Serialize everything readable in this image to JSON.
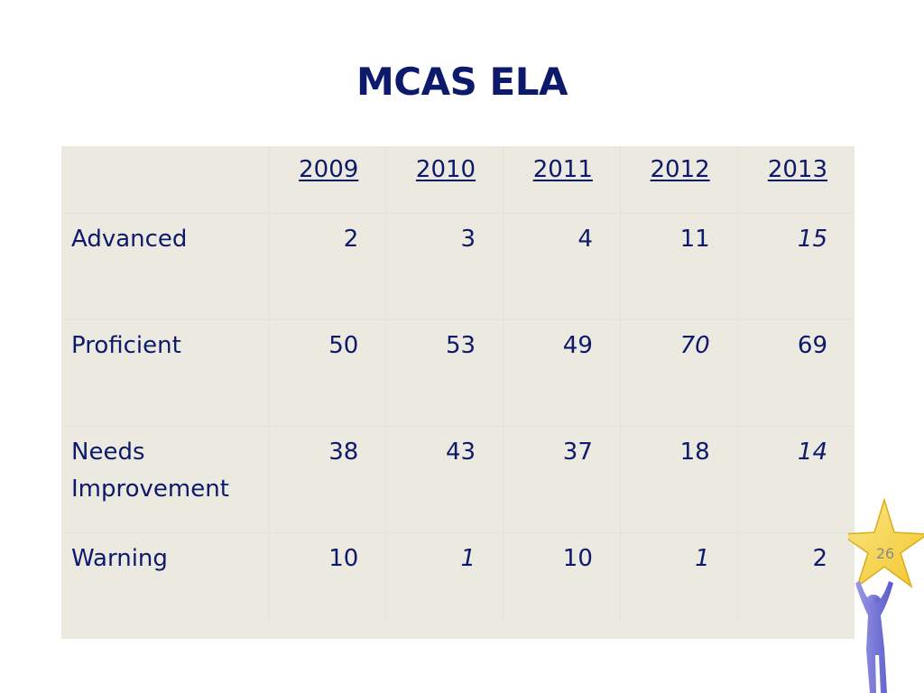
{
  "title": "MCAS ELA",
  "table": {
    "years": [
      "2009",
      "2010",
      "2011",
      "2012",
      "2013"
    ],
    "rows": [
      {
        "label": "Advanced",
        "values": [
          "2",
          "3",
          "4",
          "11",
          "15"
        ],
        "italic": [
          false,
          false,
          false,
          false,
          true
        ]
      },
      {
        "label": "Proficient",
        "values": [
          "50",
          "53",
          "49",
          "70",
          "69"
        ],
        "italic": [
          false,
          false,
          false,
          true,
          false
        ]
      },
      {
        "label_line1": "Needs",
        "label_line2": "Improvement",
        "values": [
          "38",
          "43",
          "37",
          "18",
          "14"
        ],
        "italic": [
          false,
          false,
          false,
          false,
          true
        ]
      },
      {
        "label": "Warning",
        "values": [
          "10",
          "1",
          "10",
          "1",
          "2"
        ],
        "italic": [
          false,
          true,
          false,
          true,
          false
        ]
      }
    ]
  },
  "page_number": "26",
  "colors": {
    "text": "#0d1a6b",
    "table_background": "#ece9e0",
    "star": "#f7d23e",
    "figure": "#6f6fd6"
  },
  "icons": {
    "mascot": "star-holding-figure-icon"
  }
}
